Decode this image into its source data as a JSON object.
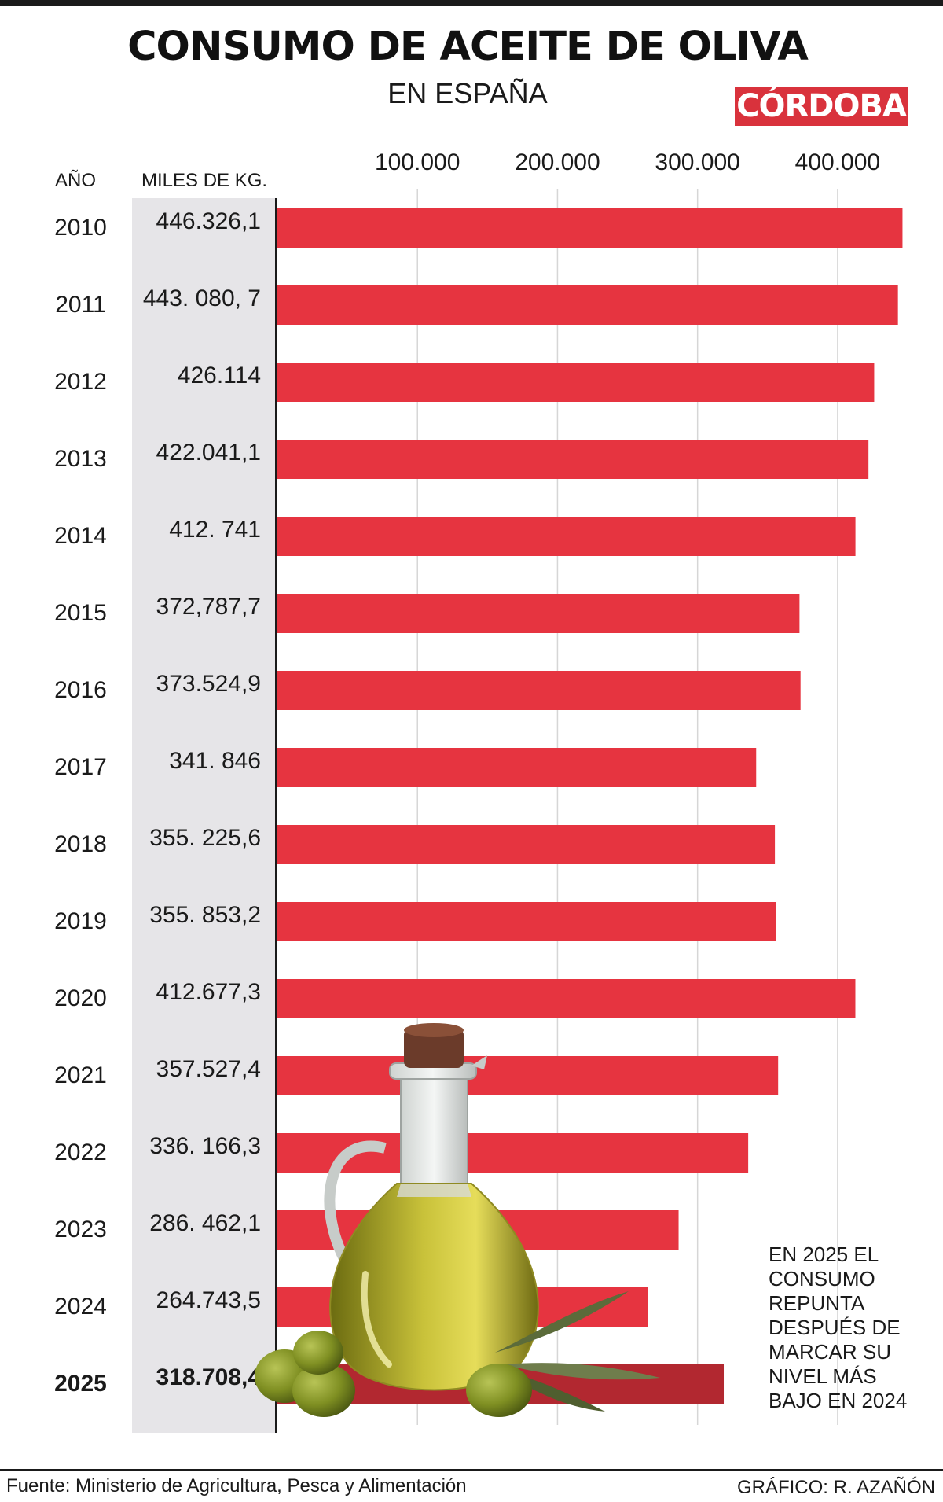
{
  "title": "CONSUMO DE ACEITE DE OLIVA",
  "subtitle": "EN ESPAÑA",
  "brand": "CÓRDOBA",
  "header": {
    "year": "AÑO",
    "unit": "MILES DE KG."
  },
  "note": "EN 2025 EL CONSUMO REPUNTA DESPUÉS DE MARCAR SU NIVEL MÁS BAJO EN 2024",
  "footer": {
    "source": "Fuente: Ministerio de Agricultura, Pesca y Alimentación",
    "credit": "GRÁFICO: R. AZAÑÓN"
  },
  "colors": {
    "bar": "#e63440",
    "highlight": "#b22830",
    "brand": "#d9323c",
    "value_column": "#e6e5e8"
  },
  "chart_data": {
    "type": "bar",
    "orientation": "horizontal",
    "title": "CONSUMO DE ACEITE DE OLIVA",
    "subtitle": "EN ESPAÑA",
    "ylabel": "AÑO",
    "xlabel": "MILES DE KG.",
    "xlim": [
      0,
      450000
    ],
    "xticks": [
      100000,
      200000,
      300000,
      400000
    ],
    "xtick_labels": [
      "100.000",
      "200.000",
      "300.000",
      "400.000"
    ],
    "grid": true,
    "highlight_category": "2025",
    "categories": [
      "2010",
      "2011",
      "2012",
      "2013",
      "2014",
      "2015",
      "2016",
      "2017",
      "2018",
      "2019",
      "2020",
      "2021",
      "2022",
      "2023",
      "2024",
      "2025"
    ],
    "values": [
      446326.1,
      443080.7,
      426114,
      422041.1,
      412741,
      372787.7,
      373524.9,
      341846,
      355225.6,
      355853.2,
      412677.3,
      357527.4,
      336166.3,
      286462.1,
      264743.5,
      318708.4
    ],
    "value_labels": [
      "446.326,1",
      "443. 080, 7",
      "426.114",
      "422.041,1",
      "412. 741",
      "372,787,7",
      "373.524,9",
      "341. 846",
      "355. 225,6",
      "355. 853,2",
      "412.677,3",
      "357.527,4",
      "336. 166,3",
      "286. 462,1",
      "264.743,5",
      "318.708,4"
    ]
  }
}
